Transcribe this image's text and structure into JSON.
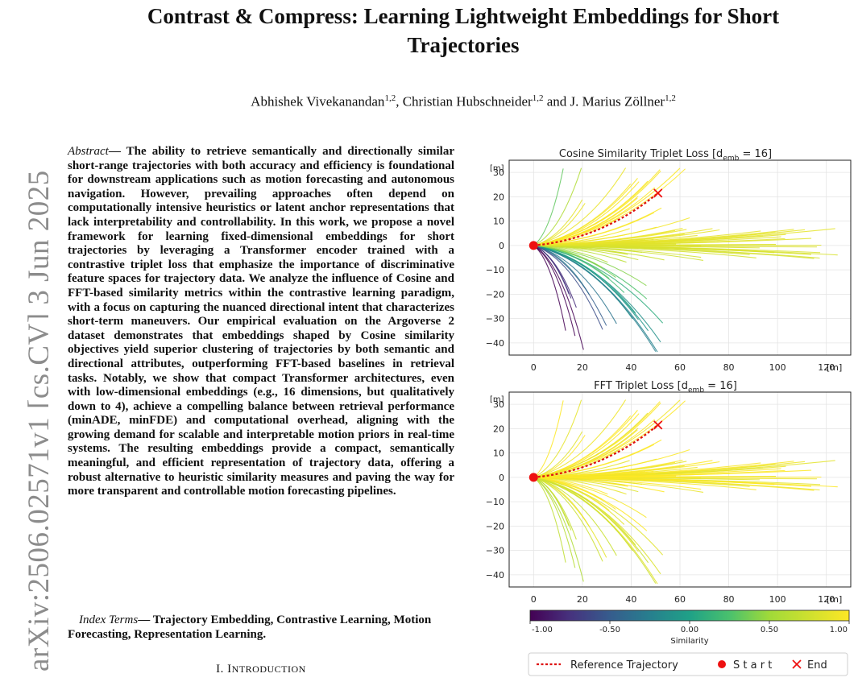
{
  "side_stamp": "arXiv:2506.02571v1  [cs.CV]  3 Jun 2025",
  "title_line1": "Contrast & Compress: Learning Lightweight Embeddings for Short",
  "title_line2": "Trajectories",
  "authors": [
    {
      "name": "Abhishek Vivekanandan",
      "aff": "1,2",
      "sep": ", "
    },
    {
      "name": "Christian Hubschneider",
      "aff": "1,2",
      "sep": " and "
    },
    {
      "name": "J. Marius Zöllner",
      "aff": "1,2",
      "sep": ""
    }
  ],
  "abstract": {
    "lead": "Abstract",
    "dash": "— ",
    "text": "The ability to retrieve semantically and directionally similar short-range trajectories with both accuracy and efficiency is foundational for downstream applications such as motion forecasting and autonomous navigation. However, prevailing approaches often depend on computationally intensive heuristics or latent anchor representations that lack interpretability and controllability. In this work, we propose a novel framework for learning fixed-dimensional embeddings for short trajectories by leveraging a Transformer encoder trained with a contrastive triplet loss that emphasize the importance of discriminative feature spaces for trajectory data. We analyze the influence of Cosine and FFT-based similarity metrics within the contrastive learning paradigm, with a focus on capturing the nuanced directional intent that characterizes short-term maneuvers. Our empirical evaluation on the Argoverse 2 dataset demonstrates that embeddings shaped by Cosine similarity objectives yield superior clustering of trajectories by both semantic and directional attributes, outperforming FFT-based baselines in retrieval tasks. Notably, we show that compact Transformer architectures, even with low-dimensional embeddings (e.g., 16 dimensions, but qualitatively down to 4), achieve a compelling balance between retrieval performance (minADE, minFDE) and computational overhead, aligning with the growing demand for scalable and interpretable motion priors in real-time systems. The resulting embeddings provide a compact, semantically meaningful, and efficient representation of trajectory data, offering a robust alternative to heuristic similarity measures and paving the way for more transparent and controllable motion forecasting pipelines."
  },
  "index_terms": {
    "lead": "Index Terms",
    "dash": "— ",
    "text": "Trajectory Embedding, Contrastive Learning, Motion Forecasting, Representation Learning."
  },
  "section": {
    "numeral": "I. ",
    "first": "I",
    "rest": "NTRODUCTION"
  },
  "chart_data": [
    {
      "type": "line",
      "title": "Cosine Similarity Triplet Loss [d_emb = 16]",
      "title_parts": {
        "prefix": "Cosine Similarity Triplet Loss [d",
        "sub": "emb",
        "suffix": " = 16]"
      },
      "x_unit": "[m]",
      "y_unit": "[m]",
      "xlim": [
        -10,
        130
      ],
      "ylim": [
        -45,
        35
      ],
      "x_ticks": [
        "0",
        "20",
        "40",
        "60",
        "80",
        "100",
        "120"
      ],
      "y_ticks": [
        "30",
        "20",
        "10",
        "0",
        "−10",
        "−20",
        "−30",
        "−40"
      ],
      "grid": true,
      "reference_trajectory": {
        "start": [
          0,
          0
        ],
        "end": [
          51,
          21.5
        ]
      },
      "series_description": "trajectories colored by cosine similarity to the reference"
    },
    {
      "type": "line",
      "title": "FFT Triplet Loss [d_emb = 16]",
      "title_parts": {
        "prefix": "FFT Triplet Loss [d",
        "sub": "emb",
        "suffix": " = 16]"
      },
      "x_unit": "[m]",
      "y_unit": "[m]",
      "xlim": [
        -10,
        130
      ],
      "ylim": [
        -45,
        35
      ],
      "x_ticks": [
        "0",
        "20",
        "40",
        "60",
        "80",
        "100",
        "120"
      ],
      "y_ticks": [
        "30",
        "20",
        "10",
        "0",
        "−10",
        "−20",
        "−30",
        "−40"
      ],
      "grid": true,
      "reference_trajectory": {
        "start": [
          0,
          0
        ],
        "end": [
          51,
          21.5
        ]
      }
    }
  ],
  "colorbar": {
    "label": "Similarity",
    "range": [
      -1.0,
      1.0
    ],
    "tick_labels": [
      "-1.00",
      "-0.50",
      "0.00",
      "0.50",
      "1.00"
    ],
    "colormap": "viridis"
  },
  "legend": {
    "reference": "Reference Trajectory",
    "start": "S t a r t",
    "end": "End"
  },
  "colors": {
    "reference": "#dd1111",
    "start": "#ee1111",
    "end": "#ee1111"
  }
}
